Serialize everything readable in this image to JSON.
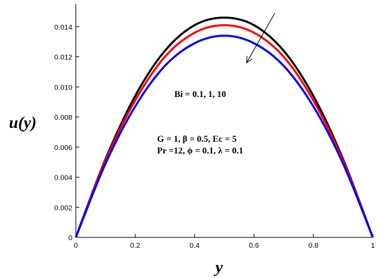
{
  "chart_data": {
    "type": "line",
    "title": "",
    "xlabel": "y",
    "ylabel": "u(y)",
    "xlim": [
      0,
      1
    ],
    "ylim": [
      0,
      0.0155
    ],
    "x_ticks": [
      "0",
      "0.2",
      "0.4",
      "0.6",
      "0.8",
      "1"
    ],
    "y_ticks": [
      "0",
      "0.002",
      "0.004",
      "0.006",
      "0.008",
      "0.010",
      "0.012",
      "0.014"
    ],
    "grid": false,
    "series": [
      {
        "color": "#000000",
        "x": [
          0,
          0.1,
          0.2,
          0.3,
          0.4,
          0.5,
          0.6,
          0.7,
          0.8,
          0.9,
          1
        ],
        "y": [
          0,
          0.0052,
          0.0094,
          0.0124,
          0.0141,
          0.0146,
          0.0141,
          0.0124,
          0.0094,
          0.0052,
          0
        ]
      },
      {
        "color": "#ff0000",
        "x": [
          0,
          0.1,
          0.2,
          0.3,
          0.4,
          0.5,
          0.6,
          0.7,
          0.8,
          0.9,
          1
        ],
        "y": [
          0,
          0.0051,
          0.0091,
          0.012,
          0.0136,
          0.0141,
          0.0136,
          0.012,
          0.0091,
          0.0051,
          0
        ]
      },
      {
        "color": "#0000ff",
        "x": [
          0,
          0.1,
          0.2,
          0.3,
          0.4,
          0.5,
          0.6,
          0.7,
          0.8,
          0.9,
          1
        ],
        "y": [
          0,
          0.0049,
          0.0087,
          0.0114,
          0.0129,
          0.0134,
          0.0129,
          0.0114,
          0.0087,
          0.0049,
          0
        ]
      }
    ],
    "annotations": {
      "bi_label": "Bi = 0.1, 1, 10",
      "params_line1": "G = 1, β = 0.5, Ec = 5",
      "params_line2": "Pr =12, ϕ = 0.1, λ = 0.1",
      "arrow_from": [
        0.67,
        0.0149
      ],
      "arrow_to": [
        0.575,
        0.0116
      ]
    }
  }
}
